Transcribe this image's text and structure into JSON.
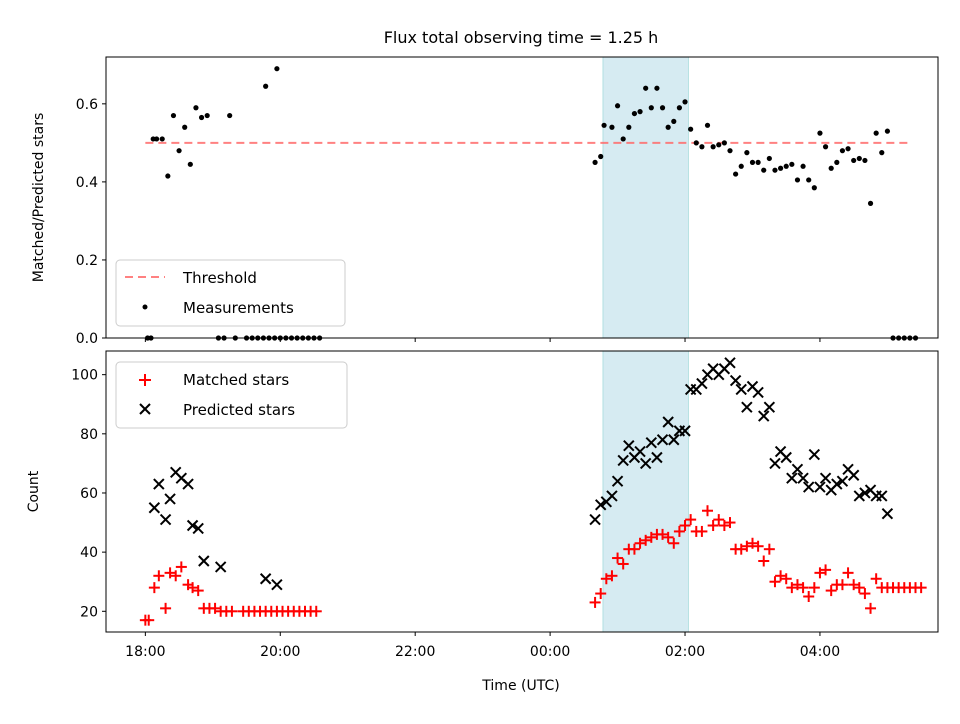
{
  "title": "Flux total observing time = 1.25 h",
  "chart_data": [
    {
      "type": "scatter",
      "panel": "top",
      "ylabel": "Matched/Predicted stars",
      "xlim": [
        "17:25",
        "05:45"
      ],
      "ylim": [
        0,
        0.72
      ],
      "yticks": [
        "0.0",
        "0.2",
        "0.4",
        "0.6"
      ],
      "threshold": 0.5,
      "shaded_interval": [
        "00:47",
        "02:03"
      ],
      "legend_position": "lower-left",
      "legend": {
        "threshold": "Threshold",
        "measurements": "Measurements"
      },
      "measurements": [
        [
          "18:02",
          0
        ],
        [
          "18:05",
          0
        ],
        [
          "18:07",
          0.51
        ],
        [
          "18:10",
          0.51
        ],
        [
          "18:15",
          0.51
        ],
        [
          "18:20",
          0.415
        ],
        [
          "18:25",
          0.57
        ],
        [
          "18:30",
          0.48
        ],
        [
          "18:35",
          0.54
        ],
        [
          "18:40",
          0.445
        ],
        [
          "18:45",
          0.59
        ],
        [
          "18:50",
          0.565
        ],
        [
          "18:55",
          0.57
        ],
        [
          "19:05",
          0
        ],
        [
          "19:10",
          0
        ],
        [
          "19:15",
          0.57
        ],
        [
          "19:20",
          0
        ],
        [
          "19:30",
          0
        ],
        [
          "19:35",
          0
        ],
        [
          "19:40",
          0
        ],
        [
          "19:45",
          0
        ],
        [
          "19:47",
          0.645
        ],
        [
          "19:50",
          0
        ],
        [
          "19:55",
          0
        ],
        [
          "20:00",
          0
        ],
        [
          "20:05",
          0
        ],
        [
          "20:10",
          0
        ],
        [
          "20:15",
          0
        ],
        [
          "20:20",
          0
        ],
        [
          "20:25",
          0
        ],
        [
          "20:30",
          0
        ],
        [
          "20:35",
          0
        ],
        [
          "19:57",
          0.69
        ],
        [
          "00:40",
          0.45
        ],
        [
          "00:45",
          0.465
        ],
        [
          "00:48",
          0.545
        ],
        [
          "00:55",
          0.54
        ],
        [
          "01:00",
          0.595
        ],
        [
          "01:05",
          0.51
        ],
        [
          "01:10",
          0.54
        ],
        [
          "01:15",
          0.575
        ],
        [
          "01:20",
          0.58
        ],
        [
          "01:25",
          0.64
        ],
        [
          "01:30",
          0.59
        ],
        [
          "01:35",
          0.64
        ],
        [
          "01:40",
          0.59
        ],
        [
          "01:45",
          0.54
        ],
        [
          "01:50",
          0.555
        ],
        [
          "01:55",
          0.59
        ],
        [
          "02:00",
          0.605
        ],
        [
          "02:05",
          0.535
        ],
        [
          "02:10",
          0.5
        ],
        [
          "02:15",
          0.49
        ],
        [
          "02:20",
          0.545
        ],
        [
          "02:25",
          0.49
        ],
        [
          "02:30",
          0.495
        ],
        [
          "02:35",
          0.5
        ],
        [
          "02:40",
          0.48
        ],
        [
          "02:45",
          0.42
        ],
        [
          "02:50",
          0.44
        ],
        [
          "02:55",
          0.475
        ],
        [
          "03:00",
          0.45
        ],
        [
          "03:05",
          0.45
        ],
        [
          "03:10",
          0.43
        ],
        [
          "03:15",
          0.46
        ],
        [
          "03:20",
          0.43
        ],
        [
          "03:25",
          0.435
        ],
        [
          "03:30",
          0.44
        ],
        [
          "03:35",
          0.445
        ],
        [
          "03:40",
          0.405
        ],
        [
          "03:45",
          0.44
        ],
        [
          "03:50",
          0.405
        ],
        [
          "03:55",
          0.385
        ],
        [
          "04:00",
          0.525
        ],
        [
          "04:05",
          0.49
        ],
        [
          "04:10",
          0.435
        ],
        [
          "04:15",
          0.45
        ],
        [
          "04:20",
          0.48
        ],
        [
          "04:25",
          0.485
        ],
        [
          "04:30",
          0.455
        ],
        [
          "04:35",
          0.46
        ],
        [
          "04:40",
          0.455
        ],
        [
          "04:45",
          0.345
        ],
        [
          "04:50",
          0.525
        ],
        [
          "04:55",
          0.475
        ],
        [
          "05:00",
          0.53
        ],
        [
          "05:05",
          0
        ],
        [
          "05:10",
          0
        ],
        [
          "05:15",
          0
        ],
        [
          "05:20",
          0
        ],
        [
          "05:25",
          0
        ]
      ]
    },
    {
      "type": "scatter",
      "panel": "bottom",
      "ylabel": "Count",
      "xlabel": "Time (UTC)",
      "xlim": [
        "17:25",
        "05:45"
      ],
      "ylim": [
        13,
        108
      ],
      "yticks": [
        "20",
        "40",
        "60",
        "80",
        "100"
      ],
      "xticks": [
        "18:00",
        "20:00",
        "22:00",
        "00:00",
        "02:00",
        "04:00"
      ],
      "shaded_interval": [
        "00:47",
        "02:03"
      ],
      "legend_position": "upper-left",
      "series": [
        {
          "name": "Matched stars",
          "marker": "plus",
          "color": "#ff0000",
          "points": [
            [
              "18:00",
              17
            ],
            [
              "18:03",
              17
            ],
            [
              "18:08",
              28
            ],
            [
              "18:12",
              32
            ],
            [
              "18:18",
              21
            ],
            [
              "18:22",
              33
            ],
            [
              "18:27",
              32
            ],
            [
              "18:32",
              35
            ],
            [
              "18:38",
              29
            ],
            [
              "18:42",
              28
            ],
            [
              "18:47",
              27
            ],
            [
              "18:52",
              21
            ],
            [
              "18:57",
              21
            ],
            [
              "19:02",
              21
            ],
            [
              "19:07",
              20
            ],
            [
              "19:12",
              20
            ],
            [
              "19:17",
              20
            ],
            [
              "19:27",
              20
            ],
            [
              "19:32",
              20
            ],
            [
              "19:37",
              20
            ],
            [
              "19:42",
              20
            ],
            [
              "19:47",
              20
            ],
            [
              "19:52",
              20
            ],
            [
              "19:57",
              20
            ],
            [
              "20:02",
              20
            ],
            [
              "20:07",
              20
            ],
            [
              "20:12",
              20
            ],
            [
              "20:17",
              20
            ],
            [
              "20:22",
              20
            ],
            [
              "20:27",
              20
            ],
            [
              "20:32",
              20
            ],
            [
              "00:40",
              23
            ],
            [
              "00:45",
              26
            ],
            [
              "00:50",
              31
            ],
            [
              "00:55",
              32
            ],
            [
              "01:00",
              38
            ],
            [
              "01:05",
              36
            ],
            [
              "01:10",
              41
            ],
            [
              "01:15",
              41
            ],
            [
              "01:20",
              43
            ],
            [
              "01:25",
              44
            ],
            [
              "01:30",
              45
            ],
            [
              "01:35",
              46
            ],
            [
              "01:40",
              46
            ],
            [
              "01:45",
              45
            ],
            [
              "01:50",
              43
            ],
            [
              "01:55",
              47
            ],
            [
              "02:00",
              49
            ],
            [
              "02:05",
              51
            ],
            [
              "02:10",
              47
            ],
            [
              "02:15",
              47
            ],
            [
              "02:20",
              54
            ],
            [
              "02:25",
              49
            ],
            [
              "02:30",
              51
            ],
            [
              "02:35",
              49
            ],
            [
              "02:40",
              50
            ],
            [
              "02:45",
              41
            ],
            [
              "02:50",
              41
            ],
            [
              "02:55",
              42
            ],
            [
              "03:00",
              43
            ],
            [
              "03:05",
              42
            ],
            [
              "03:10",
              37
            ],
            [
              "03:15",
              41
            ],
            [
              "03:20",
              30
            ],
            [
              "03:25",
              32
            ],
            [
              "03:30",
              31
            ],
            [
              "03:35",
              28
            ],
            [
              "03:40",
              29
            ],
            [
              "03:45",
              28
            ],
            [
              "03:50",
              25
            ],
            [
              "03:55",
              28
            ],
            [
              "04:00",
              33
            ],
            [
              "04:05",
              34
            ],
            [
              "04:10",
              27
            ],
            [
              "04:15",
              29
            ],
            [
              "04:20",
              29
            ],
            [
              "04:25",
              33
            ],
            [
              "04:30",
              29
            ],
            [
              "04:35",
              28
            ],
            [
              "04:40",
              26
            ],
            [
              "04:45",
              21
            ],
            [
              "04:50",
              31
            ],
            [
              "04:55",
              28
            ],
            [
              "05:00",
              28
            ],
            [
              "05:05",
              28
            ],
            [
              "05:10",
              28
            ],
            [
              "05:15",
              28
            ],
            [
              "05:20",
              28
            ],
            [
              "05:25",
              28
            ],
            [
              "05:30",
              28
            ]
          ]
        },
        {
          "name": "Predicted stars",
          "marker": "x",
          "color": "#000000",
          "points": [
            [
              "18:08",
              55
            ],
            [
              "18:12",
              63
            ],
            [
              "18:18",
              51
            ],
            [
              "18:22",
              58
            ],
            [
              "18:27",
              67
            ],
            [
              "18:32",
              65
            ],
            [
              "18:38",
              63
            ],
            [
              "18:42",
              49
            ],
            [
              "18:47",
              48
            ],
            [
              "18:52",
              37
            ],
            [
              "19:07",
              35
            ],
            [
              "19:47",
              31
            ],
            [
              "19:57",
              29
            ],
            [
              "00:40",
              51
            ],
            [
              "00:45",
              56
            ],
            [
              "00:50",
              57
            ],
            [
              "00:55",
              59
            ],
            [
              "01:00",
              64
            ],
            [
              "01:05",
              71
            ],
            [
              "01:10",
              76
            ],
            [
              "01:15",
              72
            ],
            [
              "01:20",
              74
            ],
            [
              "01:25",
              70
            ],
            [
              "01:30",
              77
            ],
            [
              "01:35",
              72
            ],
            [
              "01:40",
              78
            ],
            [
              "01:45",
              84
            ],
            [
              "01:50",
              78
            ],
            [
              "01:55",
              81
            ],
            [
              "02:00",
              81
            ],
            [
              "02:05",
              95
            ],
            [
              "02:10",
              95
            ],
            [
              "02:15",
              97
            ],
            [
              "02:20",
              100
            ],
            [
              "02:25",
              102
            ],
            [
              "02:30",
              100
            ],
            [
              "02:35",
              102
            ],
            [
              "02:40",
              104
            ],
            [
              "02:45",
              98
            ],
            [
              "02:50",
              95
            ],
            [
              "02:55",
              89
            ],
            [
              "03:00",
              96
            ],
            [
              "03:05",
              94
            ],
            [
              "03:10",
              86
            ],
            [
              "03:15",
              89
            ],
            [
              "03:20",
              70
            ],
            [
              "03:25",
              74
            ],
            [
              "03:30",
              72
            ],
            [
              "03:35",
              65
            ],
            [
              "03:40",
              68
            ],
            [
              "03:45",
              65
            ],
            [
              "03:50",
              62
            ],
            [
              "03:55",
              73
            ],
            [
              "04:00",
              62
            ],
            [
              "04:05",
              65
            ],
            [
              "04:10",
              61
            ],
            [
              "04:15",
              63
            ],
            [
              "04:20",
              64
            ],
            [
              "04:25",
              68
            ],
            [
              "04:30",
              66
            ],
            [
              "04:35",
              59
            ],
            [
              "04:40",
              60
            ],
            [
              "04:45",
              61
            ],
            [
              "04:50",
              59
            ],
            [
              "04:55",
              59
            ],
            [
              "05:00",
              53
            ]
          ]
        }
      ]
    }
  ]
}
